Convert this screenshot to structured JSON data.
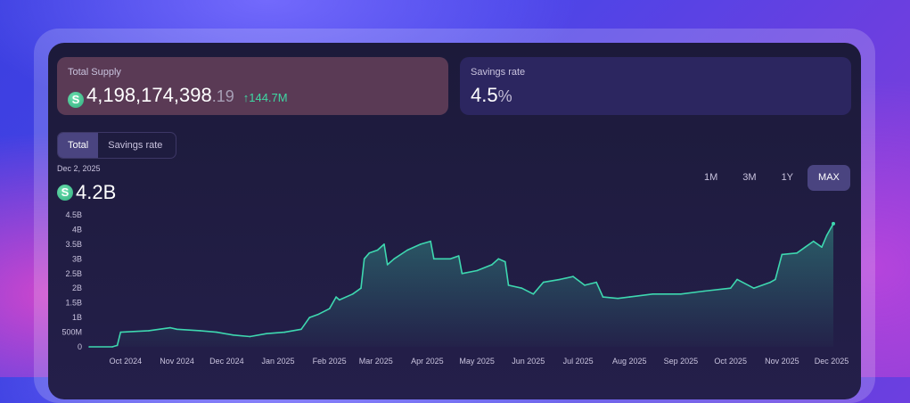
{
  "supply_card": {
    "label": "Total Supply",
    "integer": "4,198,174,398",
    "fraction": ".19",
    "delta": "↑144.7M"
  },
  "savings_card": {
    "label": "Savings rate",
    "value": "4.5",
    "unit": "%"
  },
  "tabs": [
    {
      "label": "Total",
      "active": true
    },
    {
      "label": "Savings rate",
      "active": false
    }
  ],
  "selection": {
    "date": "Dec 2, 2025",
    "value": "4.2B"
  },
  "ranges": [
    {
      "label": "1M",
      "active": false
    },
    {
      "label": "3M",
      "active": false
    },
    {
      "label": "1Y",
      "active": false
    },
    {
      "label": "MAX",
      "active": true
    }
  ],
  "coin_glyph": "S",
  "colors": {
    "line": "#3ed8b0",
    "accent_green": "#3ed8a3"
  },
  "chart_data": {
    "type": "area",
    "title": "",
    "xlabel": "",
    "ylabel": "",
    "ylim": [
      0,
      4500000000
    ],
    "y_ticks": [
      {
        "v": 0,
        "label": "0"
      },
      {
        "v": 500000000,
        "label": "500M"
      },
      {
        "v": 1000000000,
        "label": "1B"
      },
      {
        "v": 1500000000,
        "label": "1.5B"
      },
      {
        "v": 2000000000,
        "label": "2B"
      },
      {
        "v": 2500000000,
        "label": "2.5B"
      },
      {
        "v": 3000000000,
        "label": "3B"
      },
      {
        "v": 3500000000,
        "label": "3.5B"
      },
      {
        "v": 4000000000,
        "label": "4B"
      },
      {
        "v": 4500000000,
        "label": "4.5B"
      }
    ],
    "x_ticks": [
      "Oct 2024",
      "Nov 2024",
      "Dec 2024",
      "Jan 2025",
      "Feb 2025",
      "Mar 2025",
      "Apr 2025",
      "May 2025",
      "Jun 2025",
      "Jul 2025",
      "Aug 2025",
      "Sep 2025",
      "Oct 2025",
      "Nov 2025",
      "Dec 2025"
    ],
    "x_range": [
      "2024-09-09",
      "2025-12-02"
    ],
    "grid": false,
    "series": [
      {
        "points": [
          [
            "2024-09-09",
            0
          ],
          [
            "2024-09-23",
            0
          ],
          [
            "2024-09-26",
            50000000
          ],
          [
            "2024-09-28",
            500000000
          ],
          [
            "2024-10-15",
            550000000
          ],
          [
            "2024-10-28",
            650000000
          ],
          [
            "2024-11-01",
            600000000
          ],
          [
            "2024-11-15",
            550000000
          ],
          [
            "2024-11-25",
            500000000
          ],
          [
            "2024-12-05",
            400000000
          ],
          [
            "2024-12-15",
            350000000
          ],
          [
            "2024-12-25",
            450000000
          ],
          [
            "2025-01-05",
            500000000
          ],
          [
            "2025-01-15",
            600000000
          ],
          [
            "2025-01-20",
            1000000000
          ],
          [
            "2025-01-25",
            1100000000
          ],
          [
            "2025-02-01",
            1300000000
          ],
          [
            "2025-02-05",
            1700000000
          ],
          [
            "2025-02-07",
            1600000000
          ],
          [
            "2025-02-15",
            1800000000
          ],
          [
            "2025-02-20",
            2000000000
          ],
          [
            "2025-02-22",
            3000000000
          ],
          [
            "2025-02-25",
            3200000000
          ],
          [
            "2025-03-02",
            3300000000
          ],
          [
            "2025-03-06",
            3500000000
          ],
          [
            "2025-03-08",
            2800000000
          ],
          [
            "2025-03-12",
            3000000000
          ],
          [
            "2025-03-20",
            3300000000
          ],
          [
            "2025-03-28",
            3500000000
          ],
          [
            "2025-04-03",
            3600000000
          ],
          [
            "2025-04-05",
            3000000000
          ],
          [
            "2025-04-15",
            3000000000
          ],
          [
            "2025-04-20",
            3100000000
          ],
          [
            "2025-04-22",
            2500000000
          ],
          [
            "2025-05-01",
            2600000000
          ],
          [
            "2025-05-10",
            2800000000
          ],
          [
            "2025-05-14",
            3000000000
          ],
          [
            "2025-05-18",
            2900000000
          ],
          [
            "2025-05-20",
            2100000000
          ],
          [
            "2025-05-28",
            2000000000
          ],
          [
            "2025-06-04",
            1800000000
          ],
          [
            "2025-06-10",
            2200000000
          ],
          [
            "2025-06-20",
            2300000000
          ],
          [
            "2025-06-28",
            2400000000
          ],
          [
            "2025-07-05",
            2100000000
          ],
          [
            "2025-07-12",
            2200000000
          ],
          [
            "2025-07-16",
            1700000000
          ],
          [
            "2025-07-25",
            1650000000
          ],
          [
            "2025-08-01",
            1700000000
          ],
          [
            "2025-08-15",
            1800000000
          ],
          [
            "2025-09-01",
            1800000000
          ],
          [
            "2025-09-15",
            1900000000
          ],
          [
            "2025-10-01",
            2000000000
          ],
          [
            "2025-10-05",
            2300000000
          ],
          [
            "2025-10-15",
            2000000000
          ],
          [
            "2025-10-25",
            2200000000
          ],
          [
            "2025-10-28",
            2300000000
          ],
          [
            "2025-11-01",
            3150000000
          ],
          [
            "2025-11-10",
            3200000000
          ],
          [
            "2025-11-15",
            3400000000
          ],
          [
            "2025-11-20",
            3600000000
          ],
          [
            "2025-11-25",
            3400000000
          ],
          [
            "2025-11-28",
            3800000000
          ],
          [
            "2025-12-02",
            4200000000
          ]
        ]
      }
    ]
  }
}
